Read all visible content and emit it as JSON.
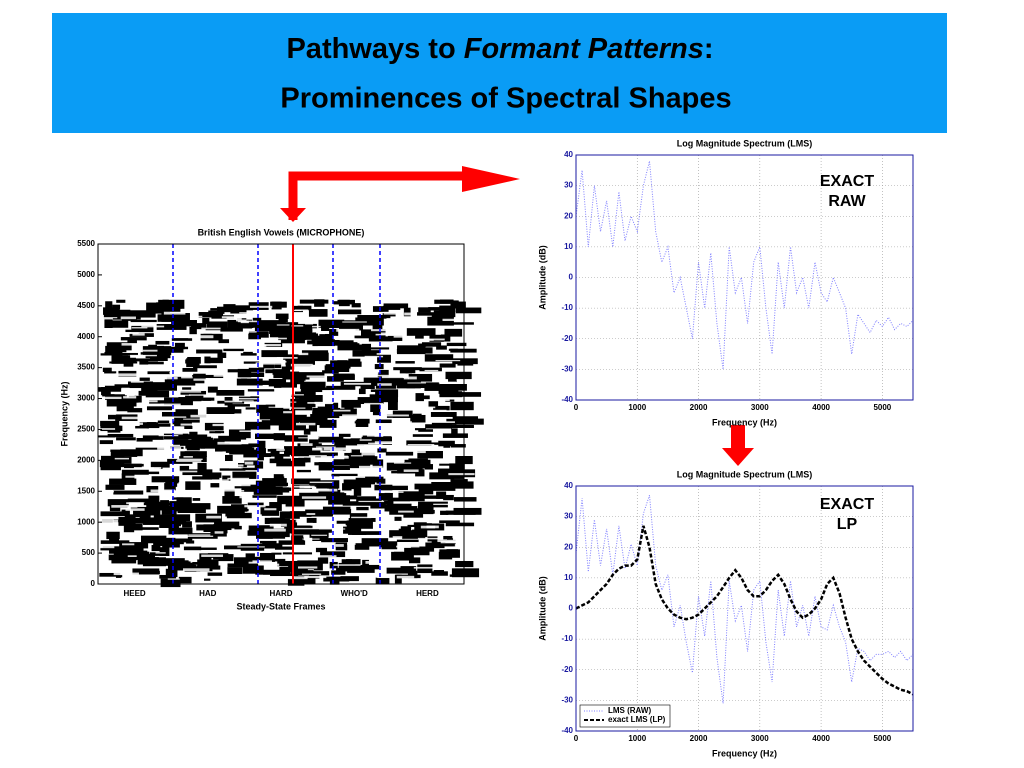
{
  "slide": {
    "title_parts": [
      "Pathways to",
      "Formant Patterns",
      ":"
    ],
    "subtitle": "Prominences of Spectral Shapes"
  },
  "chart_data": [
    {
      "type": "spectrogram",
      "title": "British English Vowels (MICROPHONE)",
      "xlabel": "Steady-State Frames",
      "ylabel": "Frequency (Hz)",
      "categories": [
        "HEED",
        "HAD",
        "HARD",
        "WHO'D",
        "HERD"
      ],
      "ylim": [
        0,
        5500
      ],
      "yticks": [
        0,
        500,
        1000,
        1500,
        2000,
        2500,
        3000,
        3500,
        4000,
        4500,
        5000,
        5500
      ]
    },
    {
      "type": "line",
      "title": "Log Magnitude Spectrum (LMS)",
      "xlabel": "Frequency (Hz)",
      "ylabel": "Amplitude (dB)",
      "annotation": [
        "EXACT",
        "RAW"
      ],
      "grid": true,
      "xlim": [
        0,
        5500
      ],
      "xticks": [
        0,
        1000,
        2000,
        3000,
        4000,
        5000
      ],
      "ylim": [
        -40,
        40
      ],
      "yticks": [
        -40,
        -30,
        -20,
        -10,
        0,
        10,
        20,
        30,
        40
      ],
      "x": [
        0,
        100,
        200,
        300,
        400,
        500,
        600,
        700,
        800,
        900,
        1000,
        1100,
        1200,
        1300,
        1400,
        1500,
        1600,
        1700,
        1800,
        1900,
        2000,
        2100,
        2200,
        2300,
        2400,
        2500,
        2600,
        2700,
        2800,
        2900,
        3000,
        3100,
        3200,
        3300,
        3400,
        3500,
        3600,
        3700,
        3800,
        3900,
        4000,
        4100,
        4200,
        4300,
        4400,
        4500,
        4600,
        4700,
        4800,
        4900,
        5000,
        5100,
        5200,
        5300,
        5400,
        5500
      ],
      "series": [
        {
          "color": "#7f7fff",
          "style": "dotted",
          "values": [
            20,
            35,
            10,
            30,
            15,
            25,
            10,
            28,
            12,
            20,
            15,
            30,
            38,
            15,
            5,
            10,
            -5,
            0,
            -10,
            -20,
            5,
            -10,
            8,
            -15,
            -30,
            10,
            -5,
            0,
            -15,
            5,
            10,
            -10,
            -25,
            5,
            -10,
            10,
            -5,
            0,
            -10,
            5,
            -5,
            -8,
            0,
            -5,
            -10,
            -25,
            -12,
            -15,
            -18,
            -14,
            -16,
            -13,
            -17,
            -15,
            -16,
            -14
          ]
        }
      ]
    },
    {
      "type": "line",
      "title": "Log Magnitude Spectrum (LMS)",
      "xlabel": "Frequency (Hz)",
      "ylabel": "Amplitude (dB)",
      "annotation": [
        "EXACT",
        "LP"
      ],
      "grid": true,
      "legend": "lower left",
      "xlim": [
        0,
        5500
      ],
      "xticks": [
        0,
        1000,
        2000,
        3000,
        4000,
        5000
      ],
      "ylim": [
        -40,
        40
      ],
      "yticks": [
        -40,
        -30,
        -20,
        -10,
        0,
        10,
        20,
        30,
        40
      ],
      "x": [
        0,
        100,
        200,
        300,
        400,
        500,
        600,
        700,
        800,
        900,
        1000,
        1100,
        1200,
        1300,
        1400,
        1500,
        1600,
        1700,
        1800,
        1900,
        2000,
        2100,
        2200,
        2300,
        2400,
        2500,
        2600,
        2700,
        2800,
        2900,
        3000,
        3100,
        3200,
        3300,
        3400,
        3500,
        3600,
        3700,
        3800,
        3900,
        4000,
        4100,
        4200,
        4300,
        4400,
        4500,
        4600,
        4700,
        4800,
        4900,
        5000,
        5100,
        5200,
        5300,
        5400,
        5500
      ],
      "series": [
        {
          "name": "LMS (RAW)",
          "color": "#7f7fff",
          "style": "dotted",
          "values": [
            18,
            36,
            12,
            29,
            14,
            26,
            11,
            27,
            13,
            21,
            14,
            31,
            37,
            14,
            6,
            11,
            -6,
            1,
            -11,
            -21,
            4,
            -9,
            9,
            -16,
            -31,
            9,
            -4,
            1,
            -14,
            6,
            9,
            -11,
            -24,
            6,
            -9,
            9,
            -6,
            1,
            -9,
            4,
            -6,
            -7,
            1,
            -6,
            -11,
            -24,
            -13,
            -14,
            -17,
            -15,
            -15,
            -14,
            -16,
            -14,
            -17,
            -15
          ]
        },
        {
          "name": "exact LMS (LP)",
          "color": "#000000",
          "style": "dashed",
          "values": [
            0,
            1,
            2,
            4,
            6,
            8,
            11,
            13,
            14,
            14,
            16,
            27,
            20,
            8,
            3,
            0,
            -2,
            -3,
            -3.5,
            -3,
            -2,
            0,
            2,
            4,
            7,
            10,
            12.5,
            10,
            6,
            4,
            4,
            6,
            9,
            11,
            8,
            3,
            -1,
            -3,
            -2,
            0,
            3,
            8,
            10,
            5,
            -3,
            -10,
            -14,
            -17,
            -19,
            -21,
            -23,
            -24.5,
            -25.5,
            -26.5,
            -27,
            -28
          ]
        }
      ]
    }
  ]
}
